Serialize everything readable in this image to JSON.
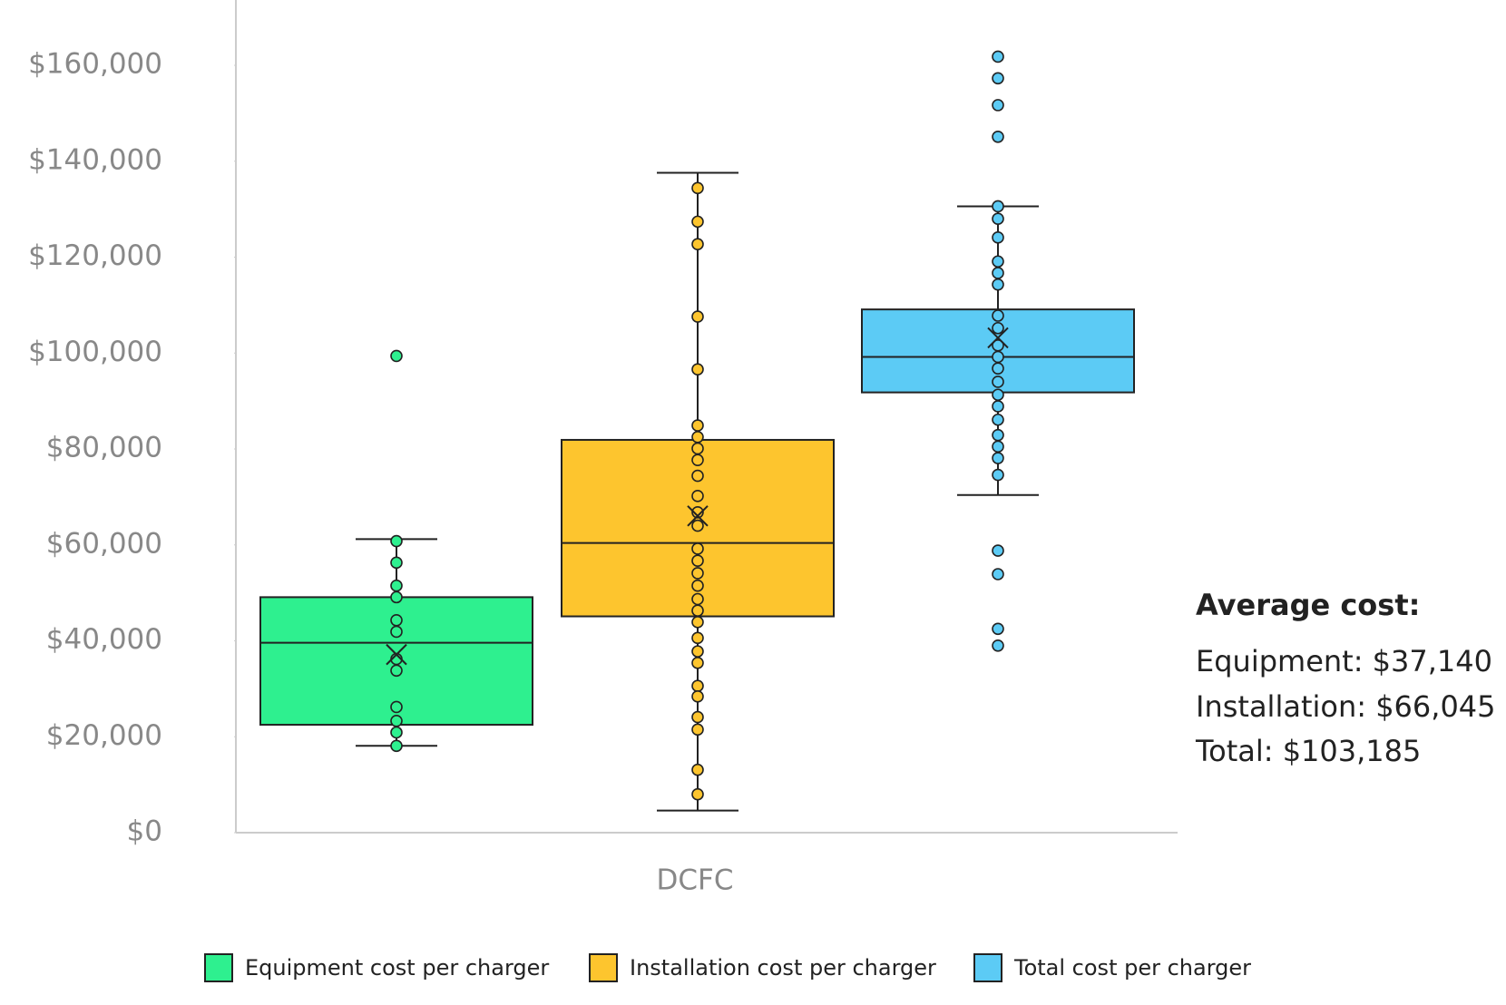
{
  "chart_data": {
    "type": "box",
    "categories": [
      "DCFC"
    ],
    "ylim": [
      0,
      170000
    ],
    "yticks": [
      {
        "value": 0,
        "label": "$0"
      },
      {
        "value": 20000,
        "label": "$20,000"
      },
      {
        "value": 40000,
        "label": "$40,000"
      },
      {
        "value": 60000,
        "label": "$60,000"
      },
      {
        "value": 80000,
        "label": "$80,000"
      },
      {
        "value": 100000,
        "label": "$100,000"
      },
      {
        "value": 120000,
        "label": "$120,000"
      },
      {
        "value": 140000,
        "label": "$140,000"
      },
      {
        "value": 160000,
        "label": "$160,000"
      }
    ],
    "series": [
      {
        "name": "Equipment cost per charger",
        "color": "#2ef08f",
        "q1": 22500,
        "median": 39600,
        "q3": 49100,
        "whisker_low": 18100,
        "whisker_high": 61200,
        "mean": 37140,
        "points": [
          99400,
          60800,
          56300,
          51500,
          49100,
          44300,
          41900,
          36200,
          33800,
          26200,
          23300,
          20900,
          18100
        ]
      },
      {
        "name": "Installation cost per charger",
        "color": "#fdc52e",
        "q1": 45100,
        "median": 60400,
        "q3": 81900,
        "whisker_low": 4600,
        "whisker_high": 137600,
        "mean": 66045,
        "points": [
          134400,
          127400,
          122700,
          107600,
          96600,
          84900,
          82500,
          80100,
          77700,
          74400,
          70200,
          66800,
          64000,
          59200,
          56700,
          54100,
          51500,
          48700,
          46300,
          43900,
          40600,
          37800,
          35400,
          30600,
          28400,
          24100,
          21500,
          13100,
          8000
        ]
      },
      {
        "name": "Total cost per charger",
        "color": "#5ccbf5",
        "q1": 91800,
        "median": 99200,
        "q3": 109100,
        "whisker_low": 70400,
        "whisker_high": 130600,
        "mean": 103185,
        "points": [
          161800,
          157300,
          151700,
          145100,
          130600,
          128000,
          124100,
          119100,
          116700,
          114300,
          107800,
          105200,
          101600,
          99200,
          96800,
          94000,
          91300,
          88900,
          86100,
          82900,
          80500,
          78100,
          74600,
          58800,
          53900,
          42500,
          39000
        ]
      }
    ],
    "annotations": [
      "Average cost:",
      "Equipment: $37,140",
      "Installation: $66,045",
      "Total: $103,185"
    ]
  }
}
